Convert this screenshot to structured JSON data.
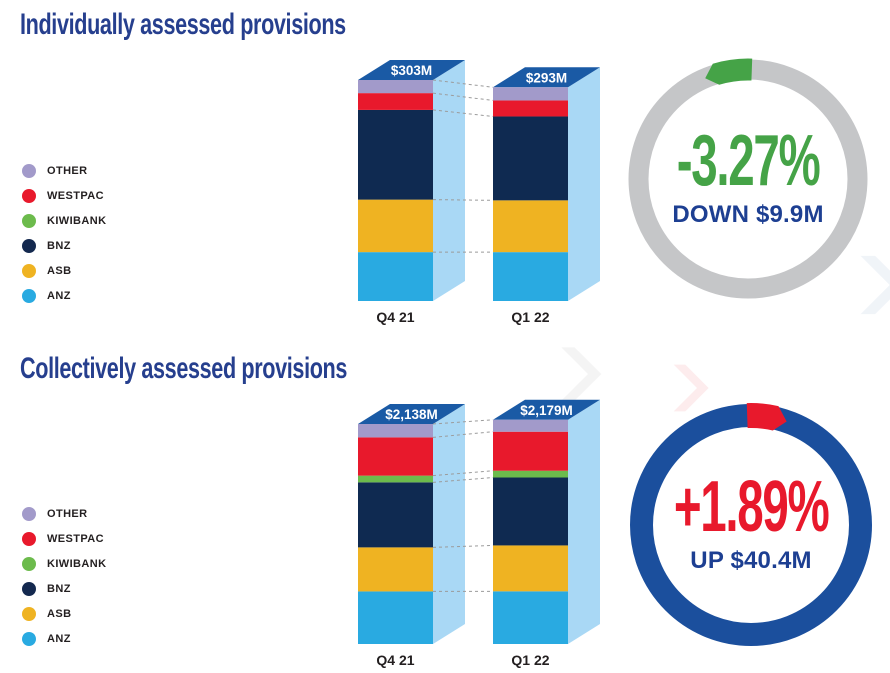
{
  "sections": [
    {
      "title": "Individually assessed provisions",
      "legend": [
        {
          "label": "OTHER",
          "color": "#a29aca"
        },
        {
          "label": "WESTPAC",
          "color": "#e8192c"
        },
        {
          "label": "KIWIBANK",
          "color": "#6cbb4c"
        },
        {
          "label": "BNZ",
          "color": "#14294f"
        },
        {
          "label": "ASB",
          "color": "#efb322"
        },
        {
          "label": "ANZ",
          "color": "#29aae1"
        }
      ],
      "gauge": {
        "percent": "-3.27%",
        "caption": "DOWN $9.9M",
        "percent_color": "#45a347",
        "caption_color": "#1d3f92",
        "ring_color": "#c5c6c8",
        "arrow_color": "#45a347",
        "direction": "down"
      }
    },
    {
      "title": "Collectively assessed provisions",
      "legend": [
        {
          "label": "OTHER",
          "color": "#a29aca"
        },
        {
          "label": "WESTPAC",
          "color": "#e8192c"
        },
        {
          "label": "KIWIBANK",
          "color": "#6cbb4c"
        },
        {
          "label": "BNZ",
          "color": "#14294f"
        },
        {
          "label": "ASB",
          "color": "#efb322"
        },
        {
          "label": "ANZ",
          "color": "#29aae1"
        }
      ],
      "gauge": {
        "percent": "+1.89%",
        "caption": "UP $40.4M",
        "percent_color": "#e8192c",
        "caption_color": "#1d3f92",
        "ring_color": "#1b4f9d",
        "arrow_color": "#e8192c",
        "direction": "up"
      }
    }
  ],
  "chart_data": [
    {
      "type": "bar",
      "stacked": true,
      "title": "Individually assessed provisions",
      "categories": [
        "Q4 21",
        "Q1 22"
      ],
      "unit": "NZD millions",
      "series": [
        {
          "name": "ANZ",
          "color": "#29aae1",
          "values": [
            67,
            67
          ]
        },
        {
          "name": "ASB",
          "color": "#efb322",
          "values": [
            72,
            71
          ]
        },
        {
          "name": "BNZ",
          "color": "#0f2a51",
          "values": [
            123,
            115
          ]
        },
        {
          "name": "KIWIBANK",
          "color": "#6cbb4c",
          "values": [
            0,
            0
          ]
        },
        {
          "name": "WESTPAC",
          "color": "#e8192c",
          "values": [
            23,
            22
          ]
        },
        {
          "name": "OTHER",
          "color": "#a29aca",
          "values": [
            18,
            18
          ]
        }
      ],
      "totals": [
        303,
        293
      ],
      "total_labels": [
        "$303M",
        "$293M"
      ],
      "change": {
        "percent": -3.27,
        "label": "DOWN $9.9M"
      }
    },
    {
      "type": "bar",
      "stacked": true,
      "title": "Collectively assessed provisions",
      "categories": [
        "Q4 21",
        "Q1 22"
      ],
      "unit": "NZD millions",
      "series": [
        {
          "name": "ANZ",
          "color": "#29aae1",
          "values": [
            511,
            512
          ]
        },
        {
          "name": "ASB",
          "color": "#efb322",
          "values": [
            428,
            446
          ]
        },
        {
          "name": "BNZ",
          "color": "#0f2a51",
          "values": [
            632,
            660
          ]
        },
        {
          "name": "KIWIBANK",
          "color": "#6cbb4c",
          "values": [
            65,
            66
          ]
        },
        {
          "name": "WESTPAC",
          "color": "#e8192c",
          "values": [
            372,
            379
          ]
        },
        {
          "name": "OTHER",
          "color": "#a29aca",
          "values": [
            130,
            116
          ]
        }
      ],
      "totals": [
        2138,
        2179
      ],
      "total_labels": [
        "$2,138M",
        "$2,179M"
      ],
      "change": {
        "percent": 1.89,
        "label": "UP $40.4M"
      }
    }
  ]
}
